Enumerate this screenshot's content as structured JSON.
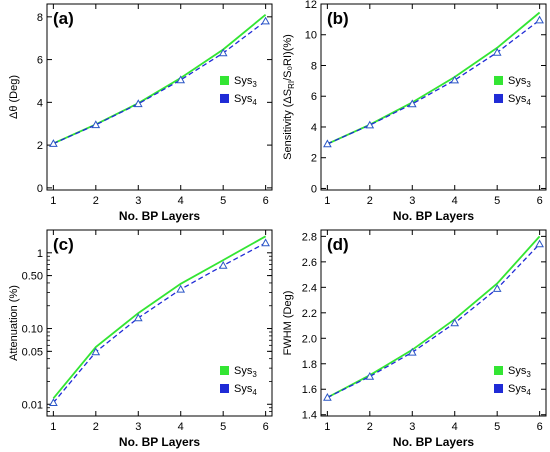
{
  "colors": {
    "sys3": "#33e533",
    "sys4": "#1f2bd6",
    "marker": "#2a56c6",
    "axis": "#000000"
  },
  "chart_data": [
    {
      "type": "line",
      "panel_label": "(a)",
      "xlabel": "No. BP Layers",
      "ylabel": "Δθ (Deg)",
      "ylabel_main": "Δθ (Deg)",
      "ylabel_sub": "",
      "ylabel_tail": "",
      "xlim": [
        0.85,
        6.15
      ],
      "ylim": [
        -0.1,
        8.6
      ],
      "yscale": "linear",
      "x": [
        1,
        2,
        3,
        4,
        5,
        6
      ],
      "xticks": [
        "1",
        "2",
        "3",
        "4",
        "5",
        "6"
      ],
      "yticks": [
        0,
        2,
        4,
        6,
        8
      ],
      "ytick_labels": [
        "0",
        "2",
        "4",
        "6",
        "8"
      ],
      "legend": "right-middle",
      "series": [
        {
          "name": "Sys3",
          "label_main": "Sys",
          "label_sub": "3",
          "style": "solid",
          "values": [
            2.08,
            2.97,
            3.96,
            5.14,
            6.47,
            8.1
          ]
        },
        {
          "name": "Sys4",
          "label_main": "Sys",
          "label_sub": "4",
          "style": "dashed",
          "values": [
            2.07,
            2.95,
            3.93,
            5.05,
            6.31,
            7.8
          ]
        }
      ]
    },
    {
      "type": "line",
      "panel_label": "(b)",
      "xlabel": "No. BP Layers",
      "ylabel": "Sensitivity (ΔSRI/SRI0)(%)",
      "ylabel_main": "Sensitivity (ΔS",
      "ylabel_sub": "RI",
      "ylabel_tail": "/S₀RI)(%)",
      "xlim": [
        0.85,
        6.15
      ],
      "ylim": [
        -0.1,
        12
      ],
      "yscale": "linear",
      "x": [
        1,
        2,
        3,
        4,
        5,
        6
      ],
      "xticks": [
        "1",
        "2",
        "3",
        "4",
        "5",
        "6"
      ],
      "yticks": [
        0,
        2,
        4,
        6,
        8,
        10,
        12
      ],
      "ytick_labels": [
        "0",
        "2",
        "4",
        "6",
        "8",
        "10",
        "12"
      ],
      "legend": "right-middle",
      "series": [
        {
          "name": "Sys3",
          "label_main": "Sys",
          "label_sub": "3",
          "style": "solid",
          "values": [
            2.9,
            4.15,
            5.6,
            7.25,
            9.15,
            11.45
          ]
        },
        {
          "name": "Sys4",
          "label_main": "Sys",
          "label_sub": "4",
          "style": "dashed",
          "values": [
            2.9,
            4.12,
            5.5,
            7.05,
            8.85,
            10.95
          ]
        }
      ]
    },
    {
      "type": "line",
      "panel_label": "(c)",
      "xlabel": "No. BP Layers",
      "ylabel": "Attenuation (%)",
      "ylabel_main": "Attenuation (%)",
      "ylabel_sub": "",
      "ylabel_tail": "",
      "xlim": [
        0.85,
        6.15
      ],
      "ylim": [
        0.007,
        2.0
      ],
      "yscale": "log",
      "x": [
        1,
        2,
        3,
        4,
        5,
        6
      ],
      "xticks": [
        "1",
        "2",
        "3",
        "4",
        "5",
        "6"
      ],
      "yticks": [
        0.01,
        0.05,
        0.1,
        0.5,
        1
      ],
      "ytick_labels": [
        "0.01",
        "0.05",
        "0.10",
        "0.50",
        "1"
      ],
      "legend": "bottom-right",
      "series": [
        {
          "name": "Sys3",
          "label_main": "Sys",
          "label_sub": "3",
          "style": "solid",
          "values": [
            0.012,
            0.057,
            0.16,
            0.39,
            0.8,
            1.65
          ]
        },
        {
          "name": "Sys4",
          "label_main": "Sys",
          "label_sub": "4",
          "style": "dashed",
          "values": [
            0.0105,
            0.049,
            0.138,
            0.33,
            0.68,
            1.35
          ]
        }
      ]
    },
    {
      "type": "line",
      "panel_label": "(d)",
      "xlabel": "No. BP Layers",
      "ylabel": "FWHM (Deg)",
      "ylabel_main": "FWHM (Deg)",
      "ylabel_sub": "",
      "ylabel_tail": "",
      "xlim": [
        0.85,
        6.15
      ],
      "ylim": [
        1.39,
        2.85
      ],
      "yscale": "linear",
      "x": [
        1,
        2,
        3,
        4,
        5,
        6
      ],
      "xticks": [
        "1",
        "2",
        "3",
        "4",
        "5",
        "6"
      ],
      "yticks": [
        1.4,
        1.6,
        1.8,
        2.0,
        2.2,
        2.4,
        2.6,
        2.8
      ],
      "ytick_labels": [
        "1.4",
        "1.6",
        "1.8",
        "2.0",
        "2.2",
        "2.4",
        "2.6",
        "2.8"
      ],
      "legend": "bottom-right",
      "series": [
        {
          "name": "Sys3",
          "label_main": "Sys",
          "label_sub": "3",
          "style": "solid",
          "values": [
            1.535,
            1.71,
            1.91,
            2.15,
            2.43,
            2.8
          ]
        },
        {
          "name": "Sys4",
          "label_main": "Sys",
          "label_sub": "4",
          "style": "dashed",
          "values": [
            1.535,
            1.7,
            1.89,
            2.12,
            2.39,
            2.74
          ]
        }
      ]
    }
  ]
}
